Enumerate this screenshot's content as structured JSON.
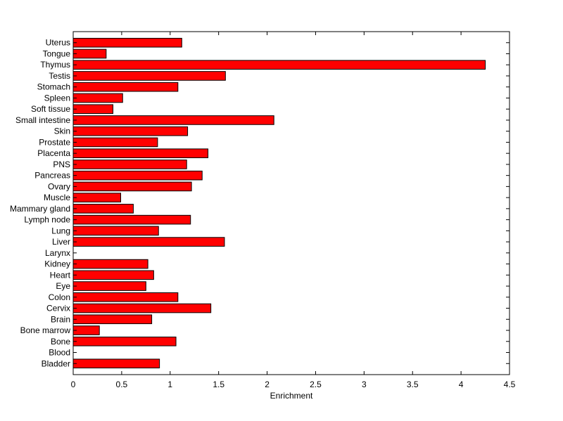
{
  "chart_data": {
    "type": "bar",
    "orientation": "horizontal",
    "title": "",
    "xlabel": "Enrichment",
    "ylabel": "",
    "xlim": [
      0,
      4.5
    ],
    "xticks": [
      "0",
      "0.5",
      "1",
      "1.5",
      "2",
      "2.5",
      "3",
      "3.5",
      "4",
      "4.5"
    ],
    "bar_color": "#ff0000",
    "edge_color": "#000000",
    "grid": false,
    "categories": [
      "Bladder",
      "Blood",
      "Bone",
      "Bone marrow",
      "Brain",
      "Cervix",
      "Colon",
      "Eye",
      "Heart",
      "Kidney",
      "Larynx",
      "Liver",
      "Lung",
      "Lymph node",
      "Mammary gland",
      "Muscle",
      "Ovary",
      "Pancreas",
      "PNS",
      "Placenta",
      "Prostate",
      "Skin",
      "Small intestine",
      "Soft tissue",
      "Spleen",
      "Stomach",
      "Testis",
      "Thymus",
      "Tongue",
      "Uterus"
    ],
    "values": [
      0.89,
      0.0,
      1.06,
      0.27,
      0.81,
      1.42,
      1.08,
      0.75,
      0.83,
      0.77,
      0.0,
      1.56,
      0.88,
      1.21,
      0.62,
      0.49,
      1.22,
      1.33,
      1.17,
      1.39,
      0.87,
      1.18,
      2.07,
      0.41,
      0.51,
      1.08,
      1.57,
      4.25,
      0.34,
      1.12
    ]
  }
}
